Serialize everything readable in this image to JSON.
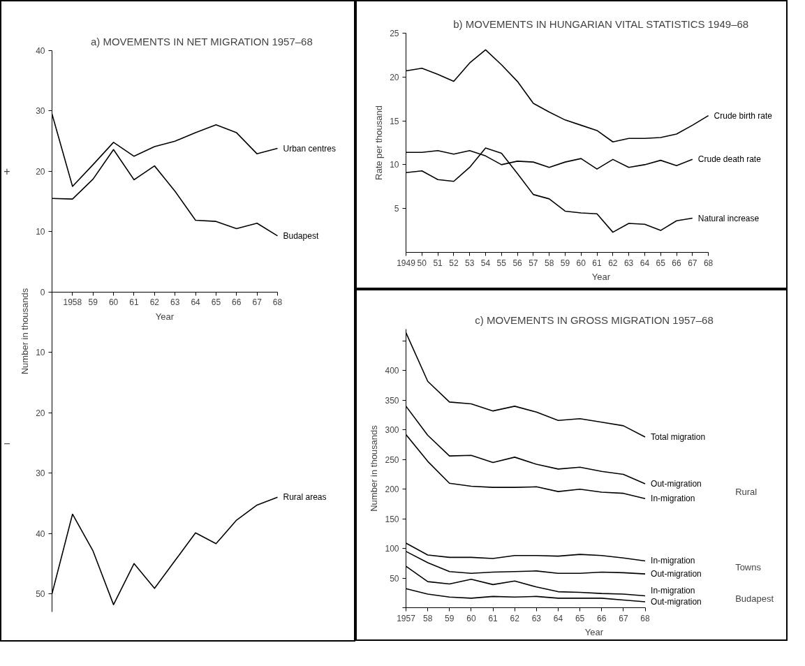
{
  "chart_data": [
    {
      "type": "line",
      "title": "a) MOVEMENTS IN NET MIGRATION 1957–68",
      "xlabel": "Year",
      "ylabel": "Number in thousands",
      "x": [
        1957,
        1958,
        1959,
        1960,
        1961,
        1962,
        1963,
        1964,
        1965,
        1966,
        1967,
        1968
      ],
      "series": [
        {
          "name": "Urban centres",
          "color": "#000000",
          "values": [
            29.5,
            17.5,
            21.1,
            24.8,
            22.5,
            24.1,
            25.0,
            26.4,
            27.7,
            26.4,
            22.9,
            23.8
          ]
        },
        {
          "name": "Budapest",
          "color": "#000000",
          "values": [
            15.5,
            15.4,
            18.7,
            23.6,
            18.6,
            20.9,
            16.7,
            11.9,
            11.7,
            10.5,
            11.4,
            9.3
          ]
        },
        {
          "name": "Rural areas",
          "color": "#000000",
          "values": [
            -50.0,
            -36.8,
            -42.9,
            -51.8,
            -45.0,
            -49.1,
            -44.5,
            -39.9,
            -41.7,
            -37.8,
            -35.3,
            -34.0
          ]
        }
      ],
      "xlim": [
        1957,
        1968
      ],
      "xticks": [
        {
          "value": 1957,
          "label": null
        },
        1958,
        {
          "value": 1959,
          "label": "59"
        },
        {
          "value": 1960,
          "label": "60"
        },
        {
          "value": 1961,
          "label": "61"
        },
        {
          "value": 1962,
          "label": "62"
        },
        {
          "value": 1963,
          "label": "63"
        },
        {
          "value": 1964,
          "label": "64"
        },
        {
          "value": 1965,
          "label": "65"
        },
        {
          "value": 1966,
          "label": "66"
        },
        {
          "value": 1967,
          "label": "67"
        },
        {
          "value": 1968,
          "label": "68"
        }
      ],
      "ylim": [
        -53,
        40
      ],
      "yticks": [
        {
          "value": -50,
          "label": "50"
        },
        {
          "value": -40,
          "label": "40"
        },
        {
          "value": -30,
          "label": "30"
        },
        {
          "value": -20,
          "label": "20"
        },
        {
          "value": -10,
          "label": "10"
        },
        0,
        10,
        20,
        30,
        40
      ],
      "annotations": [
        "+",
        "−"
      ],
      "grid": false,
      "line_style": "solid"
    },
    {
      "type": "line",
      "title": "b) MOVEMENTS IN HUNGARIAN VITAL STATISTICS 1949–68",
      "xlabel": "Year",
      "ylabel": "Rate per thousand",
      "x": [
        1949,
        1950,
        1951,
        1952,
        1953,
        1954,
        1955,
        1956,
        1957,
        1958,
        1959,
        1960,
        1961,
        1962,
        1963,
        1964,
        1965,
        1966,
        1967,
        1968
      ],
      "series": [
        {
          "name": "Crude birth rate",
          "color": "#000000",
          "values": [
            20.7,
            21.0,
            20.3,
            19.5,
            21.6,
            23.1,
            21.4,
            19.5,
            17.0,
            16.0,
            15.1,
            14.5,
            13.9,
            12.6,
            13.0,
            13.0,
            13.1,
            13.5,
            14.5,
            15.6
          ]
        },
        {
          "name": "Crude death rate",
          "color": "#000000",
          "values": [
            11.4,
            11.4,
            11.6,
            11.2,
            11.6,
            11.0,
            10.0,
            10.4,
            10.3,
            9.7,
            10.3,
            10.7,
            9.5,
            10.6,
            9.7,
            10.0,
            10.5,
            9.9,
            10.6,
            null
          ]
        },
        {
          "name": "Natural increase",
          "color": "#000000",
          "values": [
            9.1,
            9.3,
            8.3,
            8.1,
            9.7,
            11.9,
            11.3,
            9.0,
            6.6,
            6.1,
            4.7,
            4.5,
            4.4,
            2.3,
            3.3,
            3.2,
            2.5,
            3.6,
            3.9,
            null
          ]
        }
      ],
      "xlim": [
        1949,
        1968
      ],
      "xticks": [
        1949,
        {
          "value": 1950,
          "label": "50"
        },
        {
          "value": 1951,
          "label": "51"
        },
        {
          "value": 1952,
          "label": "52"
        },
        {
          "value": 1953,
          "label": "53"
        },
        {
          "value": 1954,
          "label": "54"
        },
        {
          "value": 1955,
          "label": "55"
        },
        {
          "value": 1956,
          "label": "56"
        },
        {
          "value": 1957,
          "label": "57"
        },
        {
          "value": 1958,
          "label": "58"
        },
        {
          "value": 1959,
          "label": "59"
        },
        {
          "value": 1960,
          "label": "60"
        },
        {
          "value": 1961,
          "label": "61"
        },
        {
          "value": 1962,
          "label": "62"
        },
        {
          "value": 1963,
          "label": "63"
        },
        {
          "value": 1964,
          "label": "64"
        },
        {
          "value": 1965,
          "label": "65"
        },
        {
          "value": 1966,
          "label": "66"
        },
        {
          "value": 1967,
          "label": "67"
        },
        {
          "value": 1968,
          "label": "68"
        }
      ],
      "ylim": [
        0,
        25
      ],
      "yticks": [
        5,
        10,
        15,
        20,
        25
      ],
      "grid": false,
      "line_style": "solid"
    },
    {
      "type": "line",
      "title": "c) MOVEMENTS IN GROSS MIGRATION 1957–68",
      "xlabel": "Year",
      "ylabel": "Number in thousands",
      "x": [
        1957,
        1958,
        1959,
        1960,
        1961,
        1962,
        1963,
        1964,
        1965,
        1966,
        1967,
        1968
      ],
      "series": [
        {
          "name": "Total migration",
          "color": "#000000",
          "values": [
            464,
            382,
            347,
            344,
            332,
            340,
            330,
            316,
            319,
            313,
            307,
            288
          ]
        },
        {
          "name": "Out-migration",
          "color": "#000000",
          "values": [
            340,
            291,
            256,
            257,
            245,
            254,
            242,
            234,
            237,
            230,
            225,
            209
          ]
        },
        {
          "name": "In-migration",
          "color": "#000000",
          "values": [
            292,
            247,
            210,
            205,
            203,
            203,
            204,
            196,
            200,
            195,
            193,
            184
          ]
        },
        {
          "name": "In-migration",
          "color": "#000000",
          "values": [
            109,
            89,
            85,
            85,
            83,
            88,
            88,
            87,
            90,
            88,
            84,
            79
          ]
        },
        {
          "name": "Out-migration",
          "color": "#000000",
          "values": [
            95,
            76,
            61,
            58,
            60,
            61,
            62,
            58,
            58,
            60,
            59,
            57
          ]
        },
        {
          "name": "In-migration",
          "color": "#000000",
          "values": [
            70,
            44,
            40,
            48,
            39,
            45,
            35,
            27,
            26,
            24,
            23,
            20
          ]
        },
        {
          "name": "Out-migration",
          "color": "#000000",
          "values": [
            32,
            23,
            18,
            16,
            19,
            18,
            19,
            16,
            16,
            16,
            13,
            10
          ]
        }
      ],
      "xlim": [
        1957,
        1968
      ],
      "xticks": [
        1957,
        {
          "value": 1958,
          "label": "58"
        },
        {
          "value": 1959,
          "label": "59"
        },
        {
          "value": 1960,
          "label": "60"
        },
        {
          "value": 1961,
          "label": "61"
        },
        {
          "value": 1962,
          "label": "62"
        },
        {
          "value": 1963,
          "label": "63"
        },
        {
          "value": 1964,
          "label": "64"
        },
        {
          "value": 1965,
          "label": "65"
        },
        {
          "value": 1966,
          "label": "66"
        },
        {
          "value": 1967,
          "label": "67"
        },
        {
          "value": 1968,
          "label": "68"
        }
      ],
      "ylim": [
        0,
        470
      ],
      "yticks": [
        {
          "value": 0,
          "label": null
        },
        50,
        100,
        150,
        200,
        250,
        300,
        350,
        400,
        {
          "value": 450,
          "label": null
        }
      ],
      "annotations": [
        "Rural",
        "Towns",
        "Budapest"
      ],
      "grid": false,
      "line_style": "solid"
    }
  ]
}
